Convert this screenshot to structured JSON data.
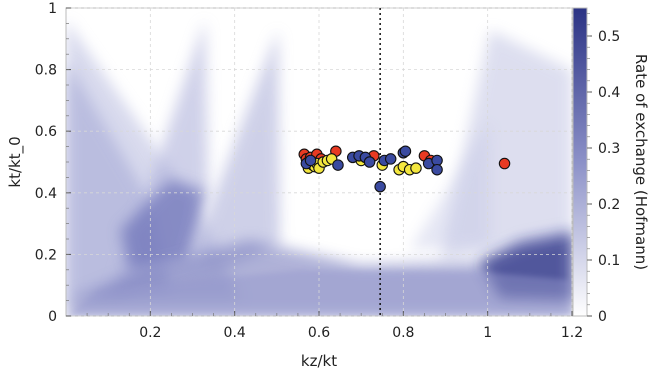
{
  "chart_data": {
    "type": "scatter",
    "title": "",
    "xlabel": "kz/kt",
    "ylabel": "kt/kt_0",
    "xlim": [
      0,
      1.2
    ],
    "ylim": [
      0,
      1
    ],
    "x_ticks": [
      "0.2",
      "0.4",
      "0.6",
      "0.8",
      "1",
      "1.2"
    ],
    "x_tick_values": [
      0.2,
      0.4,
      0.6,
      0.8,
      1.0,
      1.2
    ],
    "y_ticks": [
      "0",
      "0.2",
      "0.4",
      "0.6",
      "0.8",
      "1"
    ],
    "y_tick_values": [
      0,
      0.2,
      0.4,
      0.6,
      0.8,
      1.0
    ],
    "grid": true,
    "background": "heatmap",
    "vertical_line": {
      "x": 0.745,
      "style": "dotted"
    },
    "colorbar": {
      "label": "Rate of exchange (Hofmann)",
      "range": [
        0,
        0.55
      ],
      "ticks": [
        "0",
        "0.1",
        "0.2",
        "0.3",
        "0.4",
        "0.5"
      ],
      "tick_values": [
        0,
        0.1,
        0.2,
        0.3,
        0.4,
        0.5
      ],
      "color_low": "#ffffff",
      "color_high": "#2b3384"
    },
    "series": [
      {
        "color": "#e83a22",
        "points": [
          [
            0.565,
            0.525
          ],
          [
            0.57,
            0.51
          ],
          [
            0.575,
            0.5
          ],
          [
            0.58,
            0.515
          ],
          [
            0.585,
            0.495
          ],
          [
            0.59,
            0.505
          ],
          [
            0.595,
            0.525
          ],
          [
            0.6,
            0.49
          ],
          [
            0.605,
            0.51
          ],
          [
            0.64,
            0.535
          ],
          [
            0.73,
            0.52
          ],
          [
            0.85,
            0.52
          ],
          [
            0.865,
            0.505
          ],
          [
            1.04,
            0.495
          ]
        ]
      },
      {
        "color": "#f4e73e",
        "points": [
          [
            0.575,
            0.48
          ],
          [
            0.585,
            0.49
          ],
          [
            0.59,
            0.485
          ],
          [
            0.595,
            0.495
          ],
          [
            0.6,
            0.48
          ],
          [
            0.61,
            0.5
          ],
          [
            0.62,
            0.505
          ],
          [
            0.63,
            0.51
          ],
          [
            0.7,
            0.505
          ],
          [
            0.75,
            0.49
          ],
          [
            0.79,
            0.475
          ],
          [
            0.8,
            0.485
          ],
          [
            0.815,
            0.475
          ],
          [
            0.83,
            0.48
          ]
        ]
      },
      {
        "color": "#3a4aa0",
        "points": [
          [
            0.57,
            0.495
          ],
          [
            0.58,
            0.505
          ],
          [
            0.645,
            0.49
          ],
          [
            0.68,
            0.515
          ],
          [
            0.695,
            0.52
          ],
          [
            0.71,
            0.515
          ],
          [
            0.72,
            0.5
          ],
          [
            0.745,
            0.42
          ],
          [
            0.755,
            0.505
          ],
          [
            0.77,
            0.51
          ],
          [
            0.8,
            0.53
          ],
          [
            0.805,
            0.535
          ],
          [
            0.86,
            0.495
          ],
          [
            0.88,
            0.505
          ],
          [
            0.88,
            0.475
          ]
        ]
      }
    ]
  }
}
